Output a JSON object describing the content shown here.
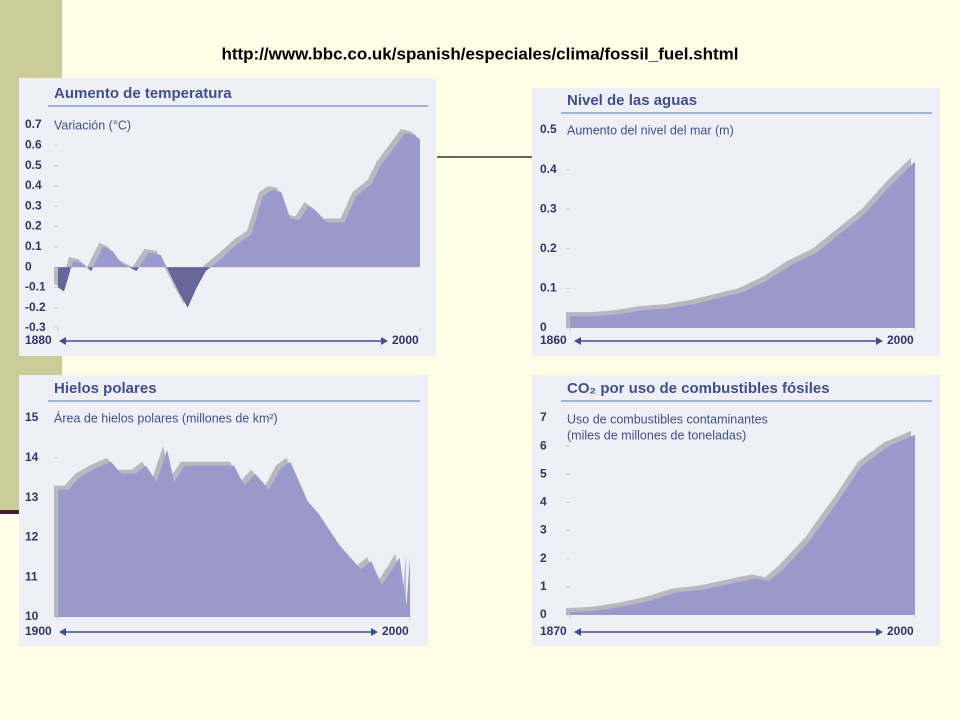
{
  "header": {
    "url": "http://www.bbc.co.uk/spanish/especiales/clima/fossil_fuel.shtml"
  },
  "chart_data": [
    {
      "type": "area",
      "title": "Aumento de temperatura",
      "y_label_lines": [
        "Variación (°C)"
      ],
      "x": [
        1880,
        1882,
        1885,
        1888,
        1891,
        1895,
        1898,
        1901,
        1906,
        1910,
        1914,
        1917,
        1920,
        1923,
        1926,
        1929,
        1934,
        1940,
        1944,
        1948,
        1951,
        1954,
        1957,
        1960,
        1963,
        1966,
        1969,
        1975,
        1979,
        1984,
        1987,
        1992,
        1995,
        1998,
        2000
      ],
      "values": [
        -0.1,
        -0.12,
        0.03,
        0.02,
        -0.02,
        0.1,
        0.08,
        0.02,
        -0.02,
        0.07,
        0.06,
        -0.03,
        -0.12,
        -0.2,
        -0.1,
        -0.02,
        0.04,
        0.12,
        0.16,
        0.35,
        0.38,
        0.37,
        0.24,
        0.23,
        0.3,
        0.27,
        0.22,
        0.22,
        0.35,
        0.41,
        0.5,
        0.6,
        0.66,
        0.65,
        0.63
      ],
      "color": "#9999cc",
      "negative_color": "#666699",
      "xlim": [
        1880,
        2000
      ],
      "xticks": [
        1880,
        2000
      ],
      "ylim": [
        -0.3,
        0.7
      ],
      "yticks": [
        0.7,
        0.6,
        0.5,
        0.4,
        0.3,
        0.2,
        0.1,
        0,
        -0.1,
        -0.2,
        -0.3
      ]
    },
    {
      "type": "area",
      "title": "Nivel de las aguas",
      "y_label_lines": [
        "Aumento del nivel del mar (m)"
      ],
      "x": [
        1860,
        1870,
        1880,
        1890,
        1900,
        1910,
        1920,
        1930,
        1940,
        1950,
        1960,
        1970,
        1980,
        1990,
        2000
      ],
      "values": [
        0.03,
        0.03,
        0.035,
        0.045,
        0.05,
        0.06,
        0.075,
        0.09,
        0.12,
        0.16,
        0.19,
        0.24,
        0.29,
        0.36,
        0.42
      ],
      "color": "#9999cc",
      "xlim": [
        1860,
        2000
      ],
      "xticks": [
        1860,
        2000
      ],
      "ylim": [
        0,
        0.5
      ],
      "yticks": [
        0.5,
        0.4,
        0.3,
        0.2,
        0.1,
        0
      ]
    },
    {
      "type": "area",
      "title": "Hielos polares",
      "y_label_lines": [
        "Área de hielos polares (millones de km²)"
      ],
      "x": [
        1900,
        1903,
        1906,
        1910,
        1915,
        1918,
        1922,
        1925,
        1928,
        1931,
        1933,
        1936,
        1940,
        1945,
        1950,
        1953,
        1956,
        1960,
        1963,
        1966,
        1968,
        1971,
        1974,
        1977,
        1980,
        1983,
        1986,
        1989,
        1992,
        1995,
        1997,
        1999,
        2000
      ],
      "values": [
        13.2,
        13.2,
        13.5,
        13.7,
        13.9,
        13.6,
        13.6,
        13.8,
        13.4,
        14.2,
        13.4,
        13.8,
        13.8,
        13.8,
        13.8,
        13.3,
        13.6,
        13.2,
        13.7,
        13.9,
        13.5,
        12.9,
        12.6,
        12.2,
        11.8,
        11.5,
        11.2,
        11.4,
        10.8,
        11.2,
        11.5,
        10.3,
        11.5
      ],
      "color": "#9999cc",
      "xlim": [
        1900,
        2000
      ],
      "xticks": [
        1900,
        2000
      ],
      "ylim": [
        10,
        15
      ],
      "yticks": [
        15,
        14,
        13,
        12,
        11,
        10
      ]
    },
    {
      "type": "area",
      "title": "CO₂ por uso de combustibles fósiles",
      "y_label_lines": [
        "Uso de combustibles contaminantes",
        "(miles de millones de toneladas)"
      ],
      "x": [
        1870,
        1880,
        1890,
        1900,
        1910,
        1920,
        1930,
        1940,
        1945,
        1950,
        1960,
        1970,
        1980,
        1990,
        2000
      ],
      "values": [
        0.1,
        0.15,
        0.3,
        0.5,
        0.8,
        0.9,
        1.1,
        1.3,
        1.2,
        1.6,
        2.6,
        3.9,
        5.3,
        6.0,
        6.4
      ],
      "color": "#9999cc",
      "xlim": [
        1870,
        2000
      ],
      "xticks": [
        1870,
        2000
      ],
      "ylim": [
        0,
        7
      ],
      "yticks": [
        7,
        6,
        5,
        4,
        3,
        2,
        1,
        0
      ]
    }
  ]
}
